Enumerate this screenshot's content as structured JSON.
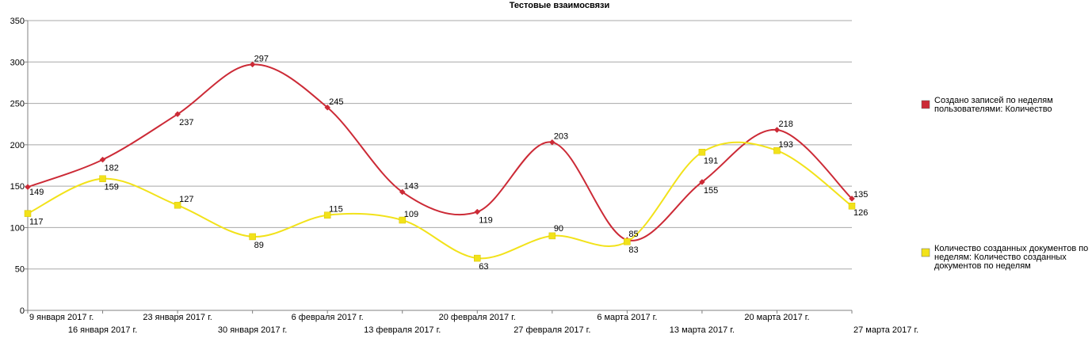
{
  "chart_data": {
    "type": "line",
    "title": "Тестовые взаимосвязи",
    "xlabel": "",
    "ylabel": "",
    "ylim": [
      0,
      350
    ],
    "yticks": [
      0,
      50,
      100,
      150,
      200,
      250,
      300,
      350
    ],
    "grid": "horizontal",
    "legend_position": "right",
    "categories": [
      "9 января 2017 г.",
      "16 января 2017 г.",
      "23 января 2017 г.",
      "30 января 2017 г.",
      "6 февраля 2017 г.",
      "13 февраля 2017 г.",
      "20 февраля 2017 г.",
      "27 февраля 2017 г.",
      "6 марта 2017 г.",
      "13 марта 2017 г.",
      "20 марта 2017 г.",
      "27 марта 2017 г."
    ],
    "series": [
      {
        "name": "Создано записей по неделям пользователями: Количество",
        "legend_lines": [
          "Создано записей по неделям",
          "пользователями: Количество"
        ],
        "color": "#cc2a36",
        "marker": "diamond",
        "values": [
          149,
          182,
          237,
          297,
          245,
          143,
          119,
          203,
          85,
          155,
          218,
          135
        ]
      },
      {
        "name": "Количество созданных документов по неделям: Количество созданных документов по неделям",
        "legend_lines": [
          "Количество созданных документов по",
          "неделям: Количество созданных",
          "документов по неделям"
        ],
        "color": "#f2e21a",
        "marker": "square",
        "values": [
          117,
          159,
          127,
          89,
          115,
          109,
          63,
          90,
          83,
          191,
          193,
          126
        ]
      }
    ]
  }
}
